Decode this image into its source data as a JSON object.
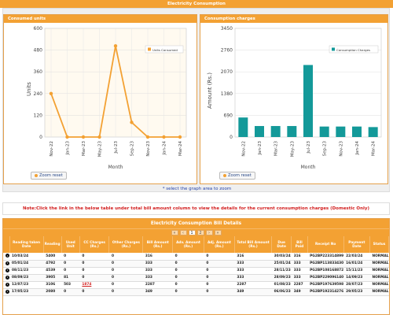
{
  "page": {
    "title": "Electricity Consumption"
  },
  "units_panel": {
    "title": "Consumed units",
    "legend": "Units Consumed",
    "ylabel": "Units",
    "xlabel": "Month",
    "zoom_label": "Zoom reset",
    "y_ticks": [
      "600",
      "480",
      "360",
      "240",
      "120",
      "0"
    ]
  },
  "charges_panel": {
    "title": "Consumption charges",
    "legend": "Consumption Charges",
    "ylabel": "Amount (Rs.)",
    "xlabel": "Month",
    "zoom_label": "Zoom reset",
    "y_ticks": [
      "3450",
      "2760",
      "2070",
      "1380",
      "690",
      "0"
    ]
  },
  "select_hint": "* select the graph area to zoom",
  "note": "Note:Click the link in the below table under total bill amount column to view the details for the current consumption charges (Domestic Only)",
  "bill": {
    "title": "Electricity Consumption Bill Details",
    "pager": [
      "1",
      "2"
    ],
    "columns": [
      "",
      "Reading taken Date",
      "Reading",
      "Used Unit",
      "CC Charges (Rs.)",
      "Other Charges (Rs.)",
      "Bill Amount (Rs.)",
      "Adv. Amount (Rs.)",
      "Adj. Amount (Rs.)",
      "Total Bill Amount (Rs.)",
      "Due Date",
      "Bill Paid",
      "Receipt No",
      "Payment Date",
      "Status"
    ],
    "rows": [
      [
        "10/03/24",
        "5400",
        "0",
        "0",
        "0",
        "316",
        "0",
        "0",
        "316",
        "30/03/24",
        "316",
        "PG2BP223314899",
        "22/03/24",
        "NORMAL"
      ],
      [
        "05/01/24",
        "4792",
        "0",
        "0",
        "0",
        "333",
        "0",
        "0",
        "333",
        "25/01/24",
        "333",
        "PG2BP113833430",
        "16/01/24",
        "NORMAL"
      ],
      [
        "08/11/23",
        "4539",
        "0",
        "0",
        "0",
        "333",
        "0",
        "0",
        "333",
        "28/11/23",
        "333",
        "PG2BP108168872",
        "15/11/23",
        "NORMAL"
      ],
      [
        "08/09/23",
        "3905",
        "81",
        "0",
        "0",
        "333",
        "0",
        "0",
        "333",
        "28/09/23",
        "333",
        "PG2BP229096140",
        "14/09/23",
        "NORMAL"
      ],
      [
        "12/07/23",
        "3106",
        "503",
        "1874",
        "0",
        "2287",
        "0",
        "0",
        "2287",
        "01/08/23",
        "2287",
        "PG2BP197639598",
        "28/07/23",
        "NORMAL"
      ],
      [
        "17/05/23",
        "2080",
        "0",
        "0",
        "0",
        "349",
        "0",
        "0",
        "349",
        "06/06/23",
        "349",
        "PG2BP192314276",
        "29/05/23",
        "NORMAL"
      ]
    ]
  },
  "chart_data": [
    {
      "type": "line",
      "title": "Consumed units",
      "xlabel": "Month",
      "ylabel": "Units",
      "categories": [
        "Nov-22",
        "Jan-23",
        "Mar-23",
        "May-23",
        "Jul-23",
        "Sep-23",
        "Nov-23",
        "Jan-24",
        "Mar-24"
      ],
      "series": [
        {
          "name": "Units Consumed",
          "values": [
            240,
            0,
            0,
            0,
            503,
            81,
            0,
            0,
            0
          ]
        }
      ],
      "ylim": [
        0,
        600
      ],
      "color": "#f3a133"
    },
    {
      "type": "bar",
      "title": "Consumption charges",
      "xlabel": "Month",
      "ylabel": "Amount (Rs.)",
      "categories": [
        "Nov-22",
        "Jan-23",
        "Mar-23",
        "May-23",
        "Jul-23",
        "Sep-23",
        "Nov-23",
        "Jan-24",
        "Mar-24"
      ],
      "series": [
        {
          "name": "Consumption Charges",
          "values": [
            620,
            349,
            349,
            349,
            2287,
            333,
            333,
            333,
            316
          ]
        }
      ],
      "ylim": [
        0,
        3450
      ],
      "color": "#139999"
    }
  ]
}
